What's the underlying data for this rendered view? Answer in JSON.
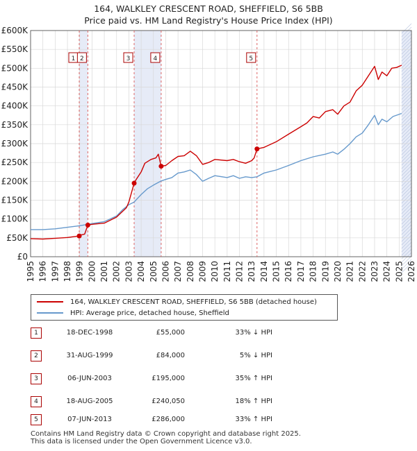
{
  "chart_data": {
    "type": "line",
    "title": "164, WALKLEY CRESCENT ROAD, SHEFFIELD, S6 5BB",
    "subtitle": "Price paid vs. HM Land Registry's House Price Index (HPI)",
    "xlim": [
      1995,
      2026
    ],
    "ylim": [
      0,
      600000
    ],
    "x_ticks": [
      "1995",
      "1996",
      "1997",
      "1998",
      "1999",
      "2000",
      "2001",
      "2002",
      "2003",
      "2004",
      "2005",
      "2006",
      "2007",
      "2008",
      "2009",
      "2010",
      "2011",
      "2012",
      "2013",
      "2014",
      "2015",
      "2016",
      "2017",
      "2018",
      "2019",
      "2020",
      "2021",
      "2022",
      "2023",
      "2024",
      "2025",
      "2026"
    ],
    "y_ticks": [
      {
        "value": 0,
        "label": "£0"
      },
      {
        "value": 50000,
        "label": "£50K"
      },
      {
        "value": 100000,
        "label": "£100K"
      },
      {
        "value": 150000,
        "label": "£150K"
      },
      {
        "value": 200000,
        "label": "£200K"
      },
      {
        "value": 250000,
        "label": "£250K"
      },
      {
        "value": 300000,
        "label": "£300K"
      },
      {
        "value": 350000,
        "label": "£350K"
      },
      {
        "value": 400000,
        "label": "£400K"
      },
      {
        "value": 450000,
        "label": "£450K"
      },
      {
        "value": 500000,
        "label": "£500K"
      },
      {
        "value": 550000,
        "label": "£550K"
      },
      {
        "value": 600000,
        "label": "£600K"
      }
    ],
    "series": [
      {
        "name": "164, WALKLEY CRESCENT ROAD, SHEFFIELD, S6 5BB (detached house)",
        "color": "#cc0000",
        "points": [
          [
            1995.0,
            48000
          ],
          [
            1996.0,
            47000
          ],
          [
            1997.0,
            49000
          ],
          [
            1998.0,
            51000
          ],
          [
            1998.96,
            55000
          ],
          [
            1999.0,
            57000
          ],
          [
            1999.4,
            60000
          ],
          [
            1999.66,
            84000
          ],
          [
            2000.0,
            86000
          ],
          [
            2001.0,
            89000
          ],
          [
            2002.0,
            105000
          ],
          [
            2002.8,
            130000
          ],
          [
            2003.0,
            145000
          ],
          [
            2003.43,
            195000
          ],
          [
            2003.6,
            205000
          ],
          [
            2004.0,
            225000
          ],
          [
            2004.3,
            248000
          ],
          [
            2004.8,
            258000
          ],
          [
            2005.2,
            262000
          ],
          [
            2005.4,
            272000
          ],
          [
            2005.63,
            240050
          ],
          [
            2006.0,
            242000
          ],
          [
            2006.5,
            255000
          ],
          [
            2007.0,
            266000
          ],
          [
            2007.5,
            268000
          ],
          [
            2008.0,
            280000
          ],
          [
            2008.5,
            268000
          ],
          [
            2009.0,
            245000
          ],
          [
            2009.5,
            250000
          ],
          [
            2010.0,
            258000
          ],
          [
            2011.0,
            255000
          ],
          [
            2011.5,
            258000
          ],
          [
            2012.0,
            252000
          ],
          [
            2012.5,
            248000
          ],
          [
            2013.0,
            255000
          ],
          [
            2013.2,
            262000
          ],
          [
            2013.43,
            286000
          ],
          [
            2014.0,
            290000
          ],
          [
            2015.0,
            305000
          ],
          [
            2016.0,
            325000
          ],
          [
            2017.0,
            345000
          ],
          [
            2017.5,
            355000
          ],
          [
            2018.0,
            372000
          ],
          [
            2018.5,
            368000
          ],
          [
            2019.0,
            385000
          ],
          [
            2019.6,
            390000
          ],
          [
            2020.0,
            378000
          ],
          [
            2020.5,
            400000
          ],
          [
            2021.0,
            410000
          ],
          [
            2021.5,
            440000
          ],
          [
            2022.0,
            455000
          ],
          [
            2022.5,
            480000
          ],
          [
            2023.0,
            505000
          ],
          [
            2023.3,
            470000
          ],
          [
            2023.6,
            490000
          ],
          [
            2024.0,
            480000
          ],
          [
            2024.4,
            500000
          ],
          [
            2024.8,
            502000
          ],
          [
            2025.2,
            508000
          ]
        ]
      },
      {
        "name": "HPI: Average price, detached house, Sheffield",
        "color": "#6699cc",
        "points": [
          [
            1995.0,
            72000
          ],
          [
            1996.0,
            72000
          ],
          [
            1997.0,
            74000
          ],
          [
            1998.0,
            78000
          ],
          [
            1998.96,
            82000
          ],
          [
            1999.5,
            85000
          ],
          [
            2000.0,
            88000
          ],
          [
            2001.0,
            93000
          ],
          [
            2002.0,
            108000
          ],
          [
            2002.5,
            125000
          ],
          [
            2003.0,
            138000
          ],
          [
            2003.43,
            145000
          ],
          [
            2004.0,
            165000
          ],
          [
            2004.5,
            180000
          ],
          [
            2005.0,
            190000
          ],
          [
            2005.63,
            201000
          ],
          [
            2006.0,
            205000
          ],
          [
            2006.5,
            210000
          ],
          [
            2007.0,
            222000
          ],
          [
            2007.5,
            225000
          ],
          [
            2008.0,
            230000
          ],
          [
            2008.5,
            218000
          ],
          [
            2009.0,
            200000
          ],
          [
            2009.5,
            208000
          ],
          [
            2010.0,
            215000
          ],
          [
            2011.0,
            210000
          ],
          [
            2011.5,
            215000
          ],
          [
            2012.0,
            208000
          ],
          [
            2012.5,
            212000
          ],
          [
            2013.0,
            210000
          ],
          [
            2013.43,
            212000
          ],
          [
            2014.0,
            222000
          ],
          [
            2015.0,
            230000
          ],
          [
            2016.0,
            242000
          ],
          [
            2017.0,
            255000
          ],
          [
            2018.0,
            265000
          ],
          [
            2019.0,
            272000
          ],
          [
            2019.6,
            278000
          ],
          [
            2020.0,
            272000
          ],
          [
            2020.5,
            285000
          ],
          [
            2021.0,
            300000
          ],
          [
            2021.5,
            318000
          ],
          [
            2022.0,
            328000
          ],
          [
            2022.5,
            350000
          ],
          [
            2023.0,
            375000
          ],
          [
            2023.3,
            350000
          ],
          [
            2023.6,
            365000
          ],
          [
            2024.0,
            358000
          ],
          [
            2024.5,
            372000
          ],
          [
            2025.2,
            380000
          ]
        ]
      }
    ],
    "sales": [
      {
        "num": "1",
        "x": 1998.96,
        "price": 55000,
        "date": "18-DEC-1998",
        "price_label": "£55,000",
        "hpi_label": "33% ↓ HPI"
      },
      {
        "num": "2",
        "x": 1999.66,
        "price": 84000,
        "date": "31-AUG-1999",
        "price_label": "£84,000",
        "hpi_label": "5% ↓ HPI"
      },
      {
        "num": "3",
        "x": 2003.43,
        "price": 195000,
        "date": "06-JUN-2003",
        "price_label": "£195,000",
        "hpi_label": "35% ↑ HPI"
      },
      {
        "num": "4",
        "x": 2005.63,
        "price": 240050,
        "date": "18-AUG-2005",
        "price_label": "£240,050",
        "hpi_label": "18% ↑ HPI"
      },
      {
        "num": "5",
        "x": 2013.43,
        "price": 286000,
        "date": "07-JUN-2013",
        "price_label": "£286,000",
        "hpi_label": "33% ↑ HPI"
      }
    ],
    "shaded_spans": [
      [
        1998.96,
        1999.66
      ],
      [
        2003.43,
        2005.63
      ],
      [
        2025.2,
        2026
      ]
    ],
    "legend": [
      {
        "label": "164, WALKLEY CRESCENT ROAD, SHEFFIELD, S6 5BB (detached house)",
        "color": "#cc0000"
      },
      {
        "label": "HPI: Average price, detached house, Sheffield",
        "color": "#6699cc"
      }
    ]
  },
  "footer": {
    "line1": "Contains HM Land Registry data © Crown copyright and database right 2025.",
    "line2": "This data is licensed under the Open Government Licence v3.0."
  }
}
